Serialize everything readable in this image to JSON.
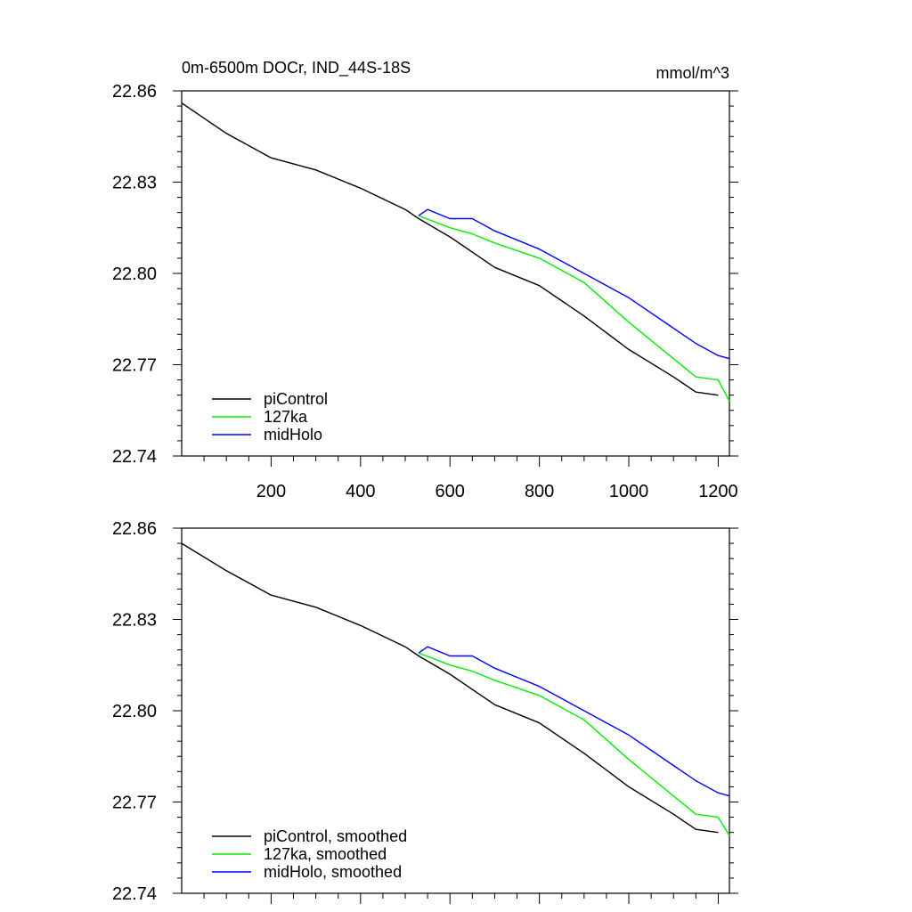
{
  "chart_data": [
    {
      "type": "line",
      "panel": "top",
      "title": "0m-6500m DOCr, IND_44S-18S",
      "units": "mmol/m^3",
      "xlim": [
        0,
        1225
      ],
      "ylim": [
        22.74,
        22.86
      ],
      "yticks": [
        "22.86",
        "22.83",
        "22.80",
        "22.77",
        "22.74"
      ],
      "xticks": [
        "200",
        "400",
        "600",
        "800",
        "1000",
        "1200"
      ],
      "legend_position": "bottom-left",
      "series": [
        {
          "name": "piControl",
          "color": "#000000",
          "x": [
            0,
            100,
            200,
            300,
            400,
            500,
            530,
            600,
            700,
            800,
            900,
            1000,
            1100,
            1150,
            1200
          ],
          "y": [
            22.856,
            22.846,
            22.838,
            22.834,
            22.828,
            22.821,
            22.818,
            22.812,
            22.802,
            22.796,
            22.786,
            22.775,
            22.766,
            22.761,
            22.76
          ]
        },
        {
          "name": "127ka",
          "color": "#00ee00",
          "x": [
            530,
            600,
            650,
            700,
            800,
            900,
            1000,
            1100,
            1150,
            1200,
            1225
          ],
          "y": [
            22.819,
            22.815,
            22.813,
            22.81,
            22.805,
            22.797,
            22.784,
            22.772,
            22.766,
            22.765,
            22.758
          ]
        },
        {
          "name": "midHolo",
          "color": "#0000ff",
          "x": [
            530,
            550,
            600,
            650,
            700,
            800,
            900,
            1000,
            1100,
            1150,
            1200,
            1225
          ],
          "y": [
            22.819,
            22.821,
            22.818,
            22.818,
            22.814,
            22.808,
            22.8,
            22.792,
            22.782,
            22.777,
            22.773,
            22.772
          ]
        }
      ]
    },
    {
      "type": "line",
      "panel": "bottom",
      "title": "",
      "units": "",
      "xlim": [
        0,
        1225
      ],
      "ylim": [
        22.74,
        22.86
      ],
      "yticks": [
        "22.86",
        "22.83",
        "22.80",
        "22.77",
        "22.74"
      ],
      "xticks": [],
      "legend_position": "bottom-left",
      "series": [
        {
          "name": "piControl, smoothed",
          "color": "#000000",
          "x": [
            0,
            100,
            200,
            300,
            400,
            500,
            530,
            600,
            700,
            800,
            900,
            1000,
            1100,
            1150,
            1200
          ],
          "y": [
            22.855,
            22.846,
            22.838,
            22.834,
            22.828,
            22.821,
            22.818,
            22.812,
            22.802,
            22.796,
            22.786,
            22.775,
            22.766,
            22.761,
            22.76
          ]
        },
        {
          "name": "127ka, smoothed",
          "color": "#00ee00",
          "x": [
            530,
            600,
            650,
            700,
            800,
            900,
            1000,
            1100,
            1150,
            1200,
            1225
          ],
          "y": [
            22.819,
            22.815,
            22.813,
            22.81,
            22.805,
            22.797,
            22.784,
            22.772,
            22.766,
            22.765,
            22.759
          ]
        },
        {
          "name": "midHolo, smoothed",
          "color": "#0000ff",
          "x": [
            530,
            550,
            600,
            650,
            700,
            800,
            900,
            1000,
            1100,
            1150,
            1200,
            1225
          ],
          "y": [
            22.819,
            22.821,
            22.818,
            22.818,
            22.814,
            22.808,
            22.8,
            22.792,
            22.782,
            22.777,
            22.773,
            22.772
          ]
        }
      ]
    }
  ]
}
